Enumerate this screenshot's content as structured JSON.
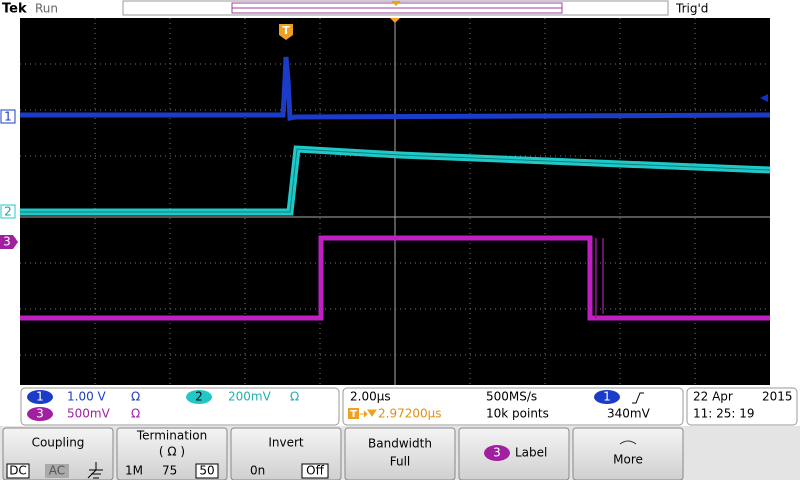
{
  "header": {
    "brand": "Tek",
    "state": "Run",
    "trigger_status": "Trig'd",
    "trigger_marker": "T"
  },
  "channel_markers": [
    "1",
    "2",
    "3"
  ],
  "readout": {
    "channels": [
      {
        "number": "1",
        "scale": "1.00 V",
        "termination": "Ω"
      },
      {
        "number": "2",
        "scale": "200mV",
        "termination": "Ω"
      },
      {
        "number": "3",
        "scale": "500mV",
        "termination": "Ω"
      }
    ],
    "timebase": "2.00µs",
    "sample_rate": "500MS/s",
    "trigger_position_marker": "T",
    "trigger_position": "2.97200µs",
    "record_length": "10k points",
    "trigger_source": "1",
    "trigger_level": "340mV",
    "date": "22 Apr",
    "year": "2015",
    "time": "11: 25: 19"
  },
  "menu": [
    {
      "label": "Coupling",
      "options": [
        "DC",
        "AC"
      ]
    },
    {
      "label": "Termination",
      "sublabel": "( Ω )",
      "options": [
        "1M",
        "75",
        "50"
      ]
    },
    {
      "label": "Invert",
      "options": [
        "0n",
        "Off"
      ]
    },
    {
      "label": "Bandwidth",
      "value": "Full"
    },
    {
      "label": "Label",
      "badge": "3"
    },
    {
      "label": "More"
    }
  ]
}
